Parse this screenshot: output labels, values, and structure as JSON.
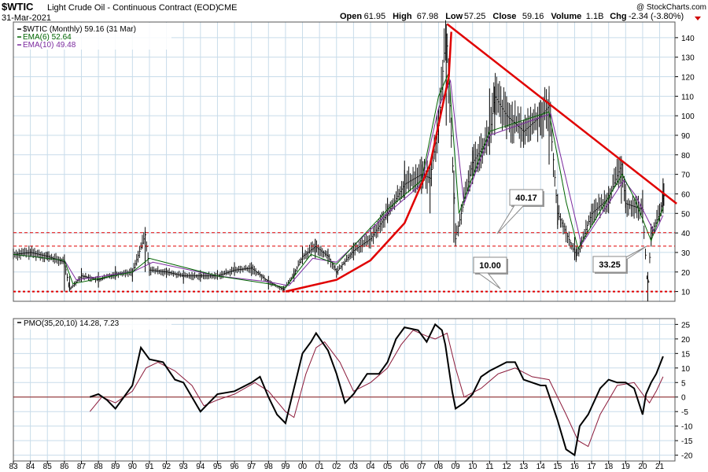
{
  "header": {
    "symbol": "$WTIC",
    "name": "Light Crude Oil - Continuous Contract (EOD)",
    "exchange": "CME",
    "date": "31-Mar-2021",
    "copyright": "@ StockCharts.com",
    "ohlc_labels": [
      "Open",
      "High",
      "Low",
      "Close",
      "Volume",
      "Chg"
    ],
    "ohlc_values": [
      "61.95",
      "67.98",
      "57.25",
      "59.16",
      "1.1B",
      "-2.34 (-3.80%)"
    ]
  },
  "colors": {
    "price": "#000000",
    "ema6": "#006400",
    "ema10": "#7b2a9e",
    "annotation": "#e00000",
    "pmo_signal": "#8b1a3a",
    "grid": "#c8dcea",
    "zero_line": "#8b1a1a"
  },
  "chart_data": [
    {
      "type": "line",
      "title": "$WTIC (Monthly) 59.16 (31 Mar)",
      "legend": [
        "$WTIC (Monthly) 59.16 (31 Mar)",
        "EMA(6) 52.64",
        "EMA(10) 49.48"
      ],
      "legend_position": "top-left",
      "x_ticks": [
        "83",
        "84",
        "85",
        "86",
        "87",
        "88",
        "89",
        "90",
        "91",
        "92",
        "93",
        "94",
        "95",
        "96",
        "97",
        "98",
        "99",
        "00",
        "01",
        "02",
        "03",
        "04",
        "05",
        "06",
        "07",
        "08",
        "09",
        "10",
        "11",
        "12",
        "13",
        "14",
        "15",
        "16",
        "17",
        "18",
        "19",
        "20",
        "21"
      ],
      "y_ticks": [
        10,
        20,
        30,
        40,
        50,
        60,
        70,
        80,
        90,
        100,
        110,
        120,
        130,
        140
      ],
      "ylim": [
        5,
        148
      ],
      "grid": true,
      "series": [
        {
          "name": "$WTIC",
          "x": [
            1983,
            1984,
            1985,
            1986,
            1986.3,
            1987,
            1988,
            1989,
            1990,
            1990.75,
            1991,
            1992,
            1993,
            1994,
            1995,
            1996,
            1997,
            1998,
            1998.9,
            1999.5,
            2000,
            2000.75,
            2001.5,
            2002,
            2003,
            2004,
            2005,
            2006,
            2007,
            2007.5,
            2008,
            2008.45,
            2008.9,
            2009,
            2010,
            2011,
            2011.3,
            2012,
            2013,
            2014,
            2014.5,
            2015,
            2016,
            2016.1,
            2017,
            2018,
            2018.75,
            2019,
            2020,
            2020.3,
            2020.5,
            2021,
            2021.2
          ],
          "y": [
            29,
            30,
            28,
            25,
            11,
            18,
            16,
            19,
            20,
            39,
            21,
            20,
            18,
            18,
            18,
            21,
            22,
            15,
            11,
            19,
            28,
            33,
            28,
            20,
            31,
            37,
            50,
            65,
            70,
            68,
            95,
            145,
            62,
            37,
            76,
            90,
            110,
            100,
            92,
            100,
            105,
            50,
            30,
            28,
            50,
            58,
            75,
            55,
            52,
            10,
            40,
            50,
            59
          ],
          "high": [
            32,
            32,
            30,
            29,
            18,
            22,
            20,
            23,
            22,
            41,
            25,
            22,
            21,
            21,
            21,
            25,
            25,
            18,
            13,
            22,
            33,
            37,
            32,
            22,
            35,
            43,
            58,
            77,
            79,
            75,
            104,
            147,
            72,
            45,
            84,
            114,
            115,
            110,
            98,
            108,
            112,
            60,
            38,
            33,
            55,
            64,
            77,
            65,
            62,
            20,
            43,
            55,
            68
          ],
          "low": [
            27,
            28,
            26,
            10,
            10,
            15,
            12,
            16,
            15,
            20,
            18,
            17,
            14,
            15,
            16,
            18,
            18,
            11,
            10,
            15,
            24,
            27,
            24,
            17,
            26,
            32,
            45,
            57,
            60,
            50,
            86,
            95,
            35,
            33,
            65,
            80,
            90,
            88,
            85,
            90,
            75,
            42,
            26,
            26,
            44,
            50,
            55,
            50,
            45,
            5,
            33,
            45,
            50
          ]
        },
        {
          "name": "EMA(6)",
          "x": [
            1983,
            1986,
            1986.5,
            1990,
            1991,
            1995,
            1998,
            1999,
            2000.5,
            2002,
            2005,
            2007,
            2008,
            2008.6,
            2009.2,
            2011,
            2014.5,
            2015.5,
            2016.2,
            2018.8,
            2019.5,
            2020.5,
            2021.2
          ],
          "y": [
            29,
            26,
            14,
            20,
            27,
            18,
            14,
            12,
            29,
            24,
            52,
            67,
            110,
            122,
            50,
            92,
            102,
            56,
            32,
            70,
            58,
            36,
            53
          ]
        },
        {
          "name": "EMA(10)",
          "x": [
            1983,
            1986,
            1986.7,
            1990,
            1991.2,
            1995,
            1998,
            1999.2,
            2000.6,
            2002,
            2005,
            2007,
            2008,
            2008.7,
            2009.5,
            2011,
            2014.6,
            2015.7,
            2016.4,
            2018.9,
            2019.6,
            2020.7,
            2021.2
          ],
          "y": [
            29,
            26,
            16,
            20,
            25,
            18,
            15,
            13,
            27,
            25,
            50,
            65,
            104,
            118,
            55,
            90,
            101,
            60,
            34,
            67,
            59,
            40,
            49
          ]
        }
      ],
      "levels": [
        40.17,
        33.25,
        10.0
      ],
      "annotations": [
        "40.17",
        "10.00",
        "33.25"
      ],
      "trendline": {
        "x": [
          2008.5,
          2022
        ],
        "y": [
          147,
          55
        ]
      },
      "arc": {
        "x": [
          1999,
          2002,
          2004,
          2006,
          2007.5,
          2008.6,
          2008.75
        ],
        "y": [
          10,
          16,
          26,
          45,
          75,
          120,
          143
        ]
      }
    },
    {
      "type": "line",
      "title": "PMO(35,20,10) 14.28, 7.23",
      "legend": [
        "PMO(35,20,10) 14.28, 7.23"
      ],
      "legend_position": "top-left",
      "y_ticks": [
        -20,
        -15,
        -10,
        -5,
        0,
        5,
        10,
        15,
        20,
        25
      ],
      "ylim": [
        -22,
        27
      ],
      "grid": true,
      "series": [
        {
          "name": "PMO",
          "x": [
            1987.5,
            1988,
            1988.5,
            1989,
            1989.5,
            1990,
            1990.5,
            1991,
            1991.8,
            1992.5,
            1993,
            1993.5,
            1994,
            1994.5,
            1995,
            1996,
            1997,
            1997.5,
            1998,
            1998.5,
            1999,
            1999.5,
            2000,
            2000.5,
            2000.8,
            2001.5,
            2002,
            2002.5,
            2003,
            2003.8,
            2004.5,
            2005,
            2005.5,
            2006,
            2006.8,
            2007.3,
            2007.8,
            2008.2,
            2008.4,
            2008.8,
            2009,
            2009.5,
            2010,
            2010.5,
            2011,
            2012,
            2012.5,
            2013,
            2014,
            2014.3,
            2015,
            2015.5,
            2016,
            2016.3,
            2016.8,
            2017.5,
            2018,
            2018.5,
            2019,
            2019.5,
            2020,
            2020.2,
            2020.5,
            2020.8,
            2021.2
          ],
          "y": [
            0,
            1,
            -1,
            -4,
            0,
            4,
            17,
            13,
            12,
            6,
            5,
            0,
            -5,
            -2,
            1,
            2,
            5,
            7,
            0,
            -6,
            -9,
            3,
            15,
            19,
            22,
            16,
            8,
            -2,
            1,
            8,
            8,
            12,
            20,
            24,
            23,
            19,
            25,
            23,
            18,
            2,
            -4,
            -2,
            1,
            7,
            9,
            12,
            12,
            6,
            4,
            4,
            -8,
            -18,
            -20,
            -10,
            -6,
            3,
            6,
            5,
            5,
            3,
            -6,
            1,
            5,
            8,
            14
          ]
        },
        {
          "name": "Signal",
          "x": [
            1987.5,
            1988.2,
            1989,
            1990,
            1990.8,
            1991.5,
            1992.5,
            1993.5,
            1994.2,
            1995,
            1996,
            1997.2,
            1998,
            1999,
            1999.5,
            2000.2,
            2000.8,
            2001.3,
            2002.2,
            2003,
            2004,
            2005,
            2005.8,
            2006.5,
            2007.3,
            2007.8,
            2008.5,
            2009,
            2009.5,
            2010.5,
            2011.5,
            2012.5,
            2013.5,
            2014.5,
            2015.5,
            2016.2,
            2016.8,
            2017.5,
            2018.5,
            2019.5,
            2020,
            2020.4,
            2020.8,
            2021.2
          ],
          "y": [
            -5,
            0,
            -2,
            2,
            10,
            12,
            9,
            4,
            -3,
            -1,
            1,
            5,
            2,
            -5,
            -7,
            8,
            17,
            19,
            12,
            2,
            5,
            10,
            18,
            23,
            21,
            20,
            22,
            10,
            0,
            3,
            8,
            10,
            7,
            6,
            -6,
            -15,
            -17,
            -6,
            4,
            5,
            1,
            -2,
            2,
            7
          ]
        }
      ],
      "reference_lines": [
        0
      ]
    }
  ]
}
